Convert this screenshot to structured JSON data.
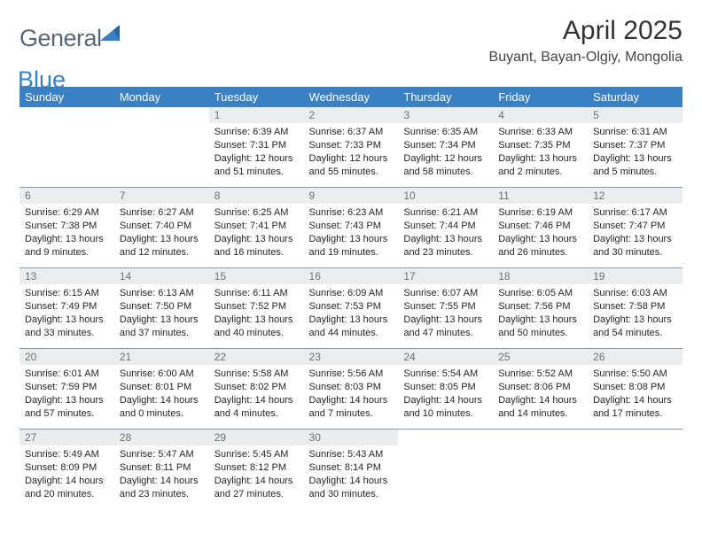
{
  "brand": {
    "general": "General",
    "blue": "Blue"
  },
  "title": "April 2025",
  "subtitle": "Buyant, Bayan-Olgiy, Mongolia",
  "colors": {
    "brand_blue": "#3a81c4",
    "brand_dark": "#5a6773",
    "header_bg": "#3a81c4",
    "header_fg": "#ffffff",
    "row_sep": "#8a98ad",
    "daynum_bg": "#ecedee",
    "daynum_fg": "#6c7177",
    "body_fg": "#262626"
  },
  "fonts": {
    "title_pt": 30,
    "subtitle_pt": 16,
    "header_pt": 13,
    "daynum_pt": 12,
    "body_pt": 11
  },
  "calendar": {
    "type": "table",
    "columns": [
      "Sunday",
      "Monday",
      "Tuesday",
      "Wednesday",
      "Thursday",
      "Friday",
      "Saturday"
    ],
    "weeks": [
      [
        null,
        null,
        {
          "n": "1",
          "sunrise": "6:39 AM",
          "sunset": "7:31 PM",
          "daylight": "12 hours and 51 minutes."
        },
        {
          "n": "2",
          "sunrise": "6:37 AM",
          "sunset": "7:33 PM",
          "daylight": "12 hours and 55 minutes."
        },
        {
          "n": "3",
          "sunrise": "6:35 AM",
          "sunset": "7:34 PM",
          "daylight": "12 hours and 58 minutes."
        },
        {
          "n": "4",
          "sunrise": "6:33 AM",
          "sunset": "7:35 PM",
          "daylight": "13 hours and 2 minutes."
        },
        {
          "n": "5",
          "sunrise": "6:31 AM",
          "sunset": "7:37 PM",
          "daylight": "13 hours and 5 minutes."
        }
      ],
      [
        {
          "n": "6",
          "sunrise": "6:29 AM",
          "sunset": "7:38 PM",
          "daylight": "13 hours and 9 minutes."
        },
        {
          "n": "7",
          "sunrise": "6:27 AM",
          "sunset": "7:40 PM",
          "daylight": "13 hours and 12 minutes."
        },
        {
          "n": "8",
          "sunrise": "6:25 AM",
          "sunset": "7:41 PM",
          "daylight": "13 hours and 16 minutes."
        },
        {
          "n": "9",
          "sunrise": "6:23 AM",
          "sunset": "7:43 PM",
          "daylight": "13 hours and 19 minutes."
        },
        {
          "n": "10",
          "sunrise": "6:21 AM",
          "sunset": "7:44 PM",
          "daylight": "13 hours and 23 minutes."
        },
        {
          "n": "11",
          "sunrise": "6:19 AM",
          "sunset": "7:46 PM",
          "daylight": "13 hours and 26 minutes."
        },
        {
          "n": "12",
          "sunrise": "6:17 AM",
          "sunset": "7:47 PM",
          "daylight": "13 hours and 30 minutes."
        }
      ],
      [
        {
          "n": "13",
          "sunrise": "6:15 AM",
          "sunset": "7:49 PM",
          "daylight": "13 hours and 33 minutes."
        },
        {
          "n": "14",
          "sunrise": "6:13 AM",
          "sunset": "7:50 PM",
          "daylight": "13 hours and 37 minutes."
        },
        {
          "n": "15",
          "sunrise": "6:11 AM",
          "sunset": "7:52 PM",
          "daylight": "13 hours and 40 minutes."
        },
        {
          "n": "16",
          "sunrise": "6:09 AM",
          "sunset": "7:53 PM",
          "daylight": "13 hours and 44 minutes."
        },
        {
          "n": "17",
          "sunrise": "6:07 AM",
          "sunset": "7:55 PM",
          "daylight": "13 hours and 47 minutes."
        },
        {
          "n": "18",
          "sunrise": "6:05 AM",
          "sunset": "7:56 PM",
          "daylight": "13 hours and 50 minutes."
        },
        {
          "n": "19",
          "sunrise": "6:03 AM",
          "sunset": "7:58 PM",
          "daylight": "13 hours and 54 minutes."
        }
      ],
      [
        {
          "n": "20",
          "sunrise": "6:01 AM",
          "sunset": "7:59 PM",
          "daylight": "13 hours and 57 minutes."
        },
        {
          "n": "21",
          "sunrise": "6:00 AM",
          "sunset": "8:01 PM",
          "daylight": "14 hours and 0 minutes."
        },
        {
          "n": "22",
          "sunrise": "5:58 AM",
          "sunset": "8:02 PM",
          "daylight": "14 hours and 4 minutes."
        },
        {
          "n": "23",
          "sunrise": "5:56 AM",
          "sunset": "8:03 PM",
          "daylight": "14 hours and 7 minutes."
        },
        {
          "n": "24",
          "sunrise": "5:54 AM",
          "sunset": "8:05 PM",
          "daylight": "14 hours and 10 minutes."
        },
        {
          "n": "25",
          "sunrise": "5:52 AM",
          "sunset": "8:06 PM",
          "daylight": "14 hours and 14 minutes."
        },
        {
          "n": "26",
          "sunrise": "5:50 AM",
          "sunset": "8:08 PM",
          "daylight": "14 hours and 17 minutes."
        }
      ],
      [
        {
          "n": "27",
          "sunrise": "5:49 AM",
          "sunset": "8:09 PM",
          "daylight": "14 hours and 20 minutes."
        },
        {
          "n": "28",
          "sunrise": "5:47 AM",
          "sunset": "8:11 PM",
          "daylight": "14 hours and 23 minutes."
        },
        {
          "n": "29",
          "sunrise": "5:45 AM",
          "sunset": "8:12 PM",
          "daylight": "14 hours and 27 minutes."
        },
        {
          "n": "30",
          "sunrise": "5:43 AM",
          "sunset": "8:14 PM",
          "daylight": "14 hours and 30 minutes."
        },
        null,
        null,
        null
      ]
    ],
    "labels": {
      "sunrise": "Sunrise:",
      "sunset": "Sunset:",
      "daylight": "Daylight:"
    }
  }
}
